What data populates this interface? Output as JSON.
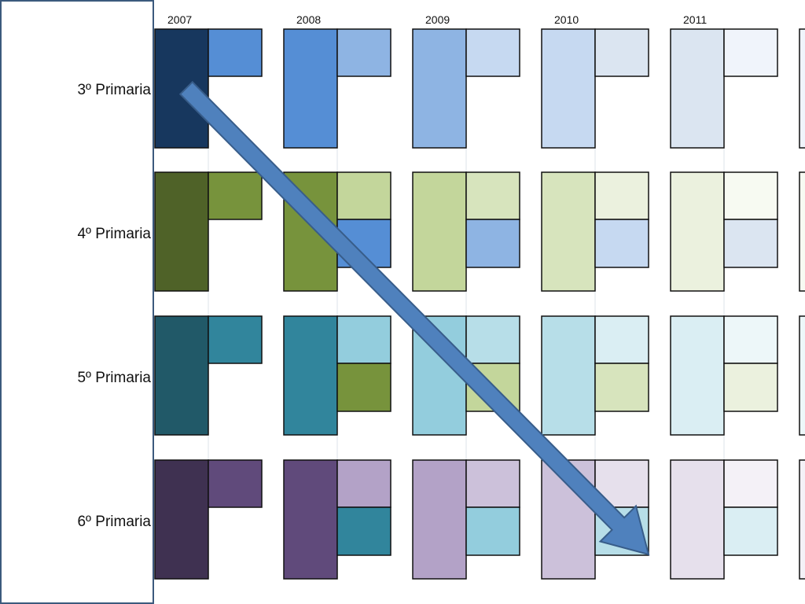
{
  "years": [
    "2007",
    "2008",
    "2009",
    "2010",
    "2011"
  ],
  "grades": [
    "3º Primaria",
    "4º Primaria",
    "5º Primaria",
    "6º Primaria"
  ],
  "palettes": {
    "blue": [
      "#17375e",
      "#558ed5",
      "#8eb4e3",
      "#c6d9f1",
      "#dbe5f1",
      "#f0f4fb"
    ],
    "green": [
      "#4f6228",
      "#77933c",
      "#c3d69b",
      "#d7e4bd",
      "#ebf1de",
      "#f7faf2"
    ],
    "teal": [
      "#215968",
      "#31859c",
      "#93cddd",
      "#b7dee8",
      "#daeef3",
      "#edf7f9"
    ],
    "purple": [
      "#3f3151",
      "#604a7b",
      "#b3a2c7",
      "#ccc1da",
      "#e6e0ec",
      "#f4f1f7"
    ]
  },
  "arrow_color": "#4f81bd"
}
